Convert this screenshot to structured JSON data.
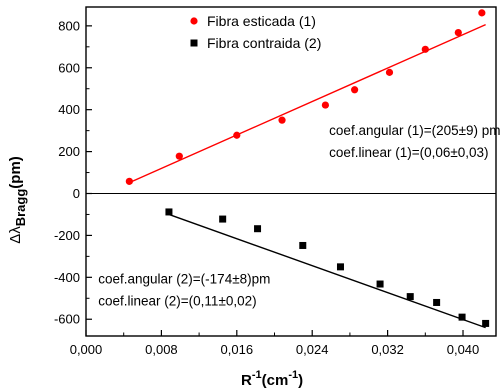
{
  "chart_data": {
    "type": "scatter",
    "xlabel": {
      "base": "R",
      "sup": "-1",
      "unit_base": "(cm",
      "unit_sup": "-1",
      "unit_close": ")"
    },
    "ylabel": {
      "prefix": "Δλ",
      "sub": "Bragg",
      "unit": "(pm)"
    },
    "xlim": [
      0.0,
      0.0435
    ],
    "ylim": [
      -680,
      890
    ],
    "x_ticks": [
      0.0,
      0.008,
      0.016,
      0.024,
      0.032,
      0.04
    ],
    "x_tick_labels": [
      "0,000",
      "0,008",
      "0,016",
      "0,024",
      "0,032",
      "0,040"
    ],
    "y_ticks": [
      -600,
      -400,
      -200,
      0,
      200,
      400,
      600,
      800
    ],
    "y_tick_labels": [
      "-600",
      "-400",
      "-200",
      "0",
      "200",
      "400",
      "600",
      "800"
    ],
    "zero_line": true,
    "grid": false,
    "legend_position": "top-center",
    "series": [
      {
        "name": "Fibra esticada  (1)",
        "marker": "circle",
        "color": "#ff0000",
        "x": [
          0.0046,
          0.0099,
          0.016,
          0.0208,
          0.0254,
          0.0285,
          0.0322,
          0.036,
          0.0395,
          0.042
        ],
        "y": [
          58,
          178,
          278,
          350,
          422,
          495,
          578,
          688,
          768,
          862
        ],
        "fit": {
          "x": [
            0.0046,
            0.0424
          ],
          "y": [
            52,
            806
          ]
        }
      },
      {
        "name": "Fibra contraida (2)",
        "marker": "square",
        "color": "#000000",
        "x": [
          0.0088,
          0.0145,
          0.0182,
          0.023,
          0.027,
          0.0312,
          0.0344,
          0.0372,
          0.0399,
          0.0424
        ],
        "y": [
          -88,
          -122,
          -168,
          -248,
          -350,
          -432,
          -492,
          -520,
          -590,
          -620
        ],
        "fit": {
          "x": [
            0.0088,
            0.0424
          ],
          "y": [
            -100,
            -640
          ]
        }
      }
    ],
    "annotations": [
      {
        "line1": "coef.angular (1)=(205±9) pm",
        "line2": "coef.linear    (1)=(0,06±0,03)",
        "anchor_x": 0.0258,
        "anchor_y": 280
      },
      {
        "line1": "coef.angular (2)=(-174±8)pm",
        "line2": "coef.linear    (2)=(0,11±0,02)",
        "anchor_x": 0.0013,
        "anchor_y": -430
      }
    ]
  }
}
